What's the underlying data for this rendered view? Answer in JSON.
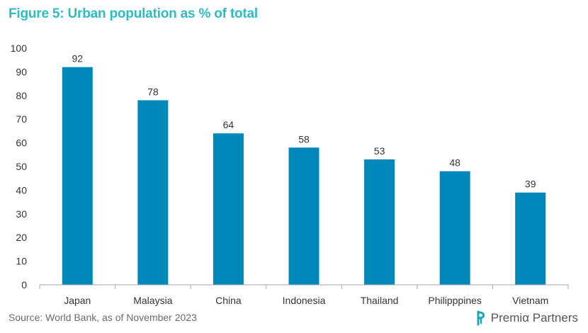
{
  "header": {
    "title": "Figure 5: Urban population as % of total"
  },
  "footer": {
    "source": "Source: World Bank, as of November 2023",
    "brand": "Premiα Partners"
  },
  "colors": {
    "title": "#2bbcc4",
    "bar": "#0088bb",
    "axis": "#a6a6a6",
    "text": "#333333",
    "logo_mark": "#1aa7b8"
  },
  "chart_data": {
    "type": "bar",
    "title": "Figure 5: Urban population as % of total",
    "xlabel": "",
    "ylabel": "",
    "categories": [
      "Japan",
      "Malaysia",
      "China",
      "Indonesia",
      "Thailand",
      "Philipppines",
      "Vietnam"
    ],
    "values": [
      92,
      78,
      64,
      58,
      53,
      48,
      39
    ],
    "data_labels": [
      "92",
      "78",
      "64",
      "58",
      "53",
      "48",
      "39"
    ],
    "ylim": [
      0,
      100
    ],
    "yticks": [
      0,
      10,
      20,
      30,
      40,
      50,
      60,
      70,
      80,
      90,
      100
    ],
    "grid": false,
    "legend": "none"
  }
}
